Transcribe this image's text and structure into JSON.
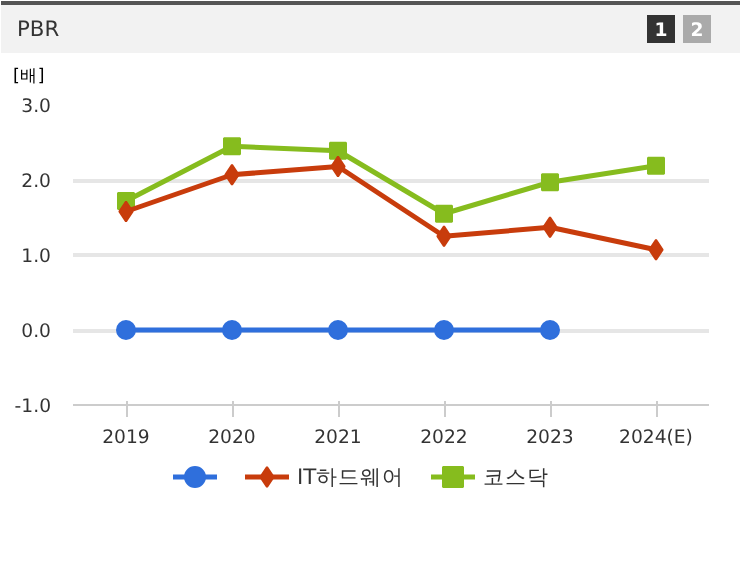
{
  "chart_data": {
    "type": "line",
    "title": "PBR",
    "ylabel": "[배]",
    "annotations": [
      "1",
      "2"
    ],
    "categories": [
      "2019",
      "2020",
      "2021",
      "2022",
      "2023",
      "2024(E)"
    ],
    "series": [
      {
        "color": "#2f6fdc",
        "marker": "circle",
        "values": [
          0,
          0,
          0,
          0,
          0,
          null
        ]
      },
      {
        "name": "IT하드웨어",
        "color": "#c83c0c",
        "marker": "diamond",
        "values": [
          1.58,
          2.07,
          2.18,
          1.25,
          1.37,
          1.07
        ]
      },
      {
        "name": "코스닥",
        "color": "#86bc1e",
        "marker": "square",
        "values": [
          1.72,
          2.45,
          2.39,
          1.55,
          1.97,
          2.19
        ]
      }
    ],
    "ylim": [
      -1,
      3
    ],
    "yticks": [
      {
        "value": -1,
        "label": "-1.0"
      },
      {
        "value": 0,
        "label": "0.0"
      },
      {
        "value": 1,
        "label": "1.0"
      },
      {
        "value": 2,
        "label": "2.0"
      },
      {
        "value": 3,
        "label": "3.0"
      }
    ],
    "grid": "y",
    "legend": "bottom"
  }
}
